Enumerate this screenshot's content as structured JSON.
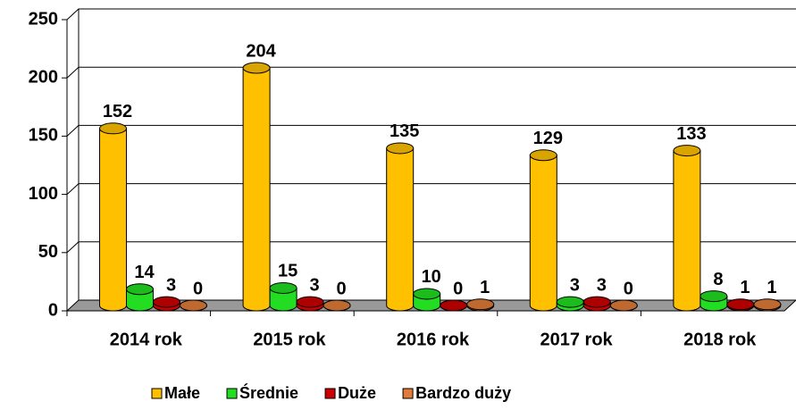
{
  "chart_data": {
    "type": "bar3d",
    "categories": [
      "2014 rok",
      "2015 rok",
      "2016 rok",
      "2017 rok",
      "2018 rok"
    ],
    "series": [
      {
        "name": "Małe",
        "color": "#FFC000",
        "values": [
          152,
          204,
          135,
          129,
          133
        ]
      },
      {
        "name": "Średnie",
        "color": "#22DD22",
        "values": [
          14,
          15,
          10,
          3,
          8
        ]
      },
      {
        "name": "Duże",
        "color": "#CC0000",
        "values": [
          3,
          3,
          0,
          3,
          1
        ]
      },
      {
        "name": "Bardzo duży",
        "color": "#E07B39",
        "values": [
          0,
          0,
          1,
          0,
          1
        ]
      }
    ],
    "ylim": [
      0,
      250
    ],
    "yticks": [
      0,
      50,
      100,
      150,
      200,
      250
    ],
    "grid": true,
    "legend": "bottom"
  }
}
